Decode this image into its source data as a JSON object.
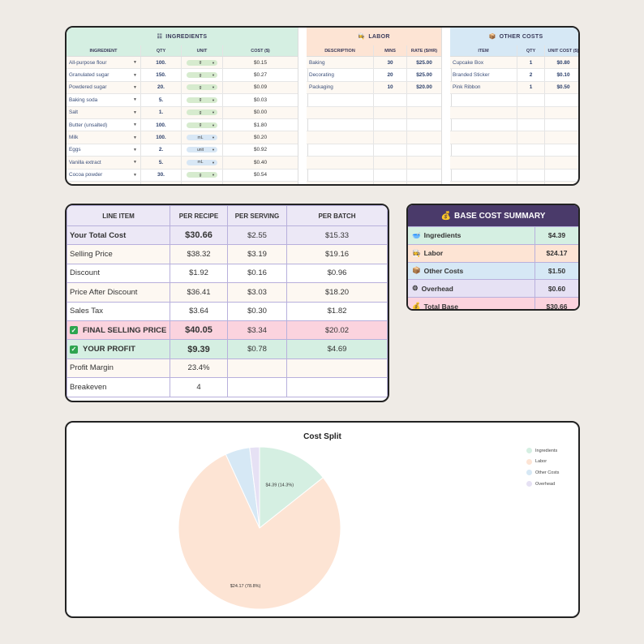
{
  "ingredients": {
    "title": "INGREDIENTS",
    "columns": [
      "INGREDIENT",
      "QTY",
      "UNIT",
      "COST ($)"
    ],
    "rows": [
      {
        "name": "All-purpose flour",
        "qty": "100.",
        "unit": "g",
        "cost": "$0.15"
      },
      {
        "name": "Granulated sugar",
        "qty": "150.",
        "unit": "g",
        "cost": "$0.27"
      },
      {
        "name": "Powdered sugar",
        "qty": "20.",
        "unit": "g",
        "cost": "$0.09"
      },
      {
        "name": "Baking soda",
        "qty": "5.",
        "unit": "g",
        "cost": "$0.03"
      },
      {
        "name": "Salt",
        "qty": "1.",
        "unit": "g",
        "cost": "$0.00"
      },
      {
        "name": "Butter (unsalted)",
        "qty": "100.",
        "unit": "g",
        "cost": "$1.80"
      },
      {
        "name": "Milk",
        "qty": "100.",
        "unit": "mL",
        "cost": "$0.20"
      },
      {
        "name": "Eggs",
        "qty": "2.",
        "unit": "unit",
        "cost": "$0.92"
      },
      {
        "name": "Vanilla extract",
        "qty": "5.",
        "unit": "mL",
        "cost": "$0.40"
      },
      {
        "name": "Cocoa powder",
        "qty": "30.",
        "unit": "g",
        "cost": "$0.54"
      },
      {
        "name": "",
        "qty": "",
        "unit": "",
        "cost": ""
      }
    ]
  },
  "labor": {
    "title": "LABOR",
    "columns": [
      "DESCRIPTION",
      "MINS",
      "RATE ($/HR)"
    ],
    "rows": [
      {
        "desc": "Baking",
        "mins": "30",
        "rate": "$25.00"
      },
      {
        "desc": "Decorating",
        "mins": "20",
        "rate": "$25.00"
      },
      {
        "desc": "Packaging",
        "mins": "10",
        "rate": "$20.00"
      }
    ]
  },
  "other": {
    "title": "OTHER COSTS",
    "columns": [
      "ITEM",
      "QTY",
      "UNIT COST ($)"
    ],
    "rows": [
      {
        "item": "Cupcake Box",
        "qty": "1",
        "cost": "$0.80"
      },
      {
        "item": "Branded Sticker",
        "qty": "2",
        "cost": "$0.10"
      },
      {
        "item": "Pink Ribbon",
        "qty": "1",
        "cost": "$0.50"
      }
    ]
  },
  "pricing": {
    "columns": [
      "LINE ITEM",
      "PER RECIPE",
      "PER SERVING",
      "PER BATCH"
    ],
    "rows": [
      {
        "label": "Your Total Cost",
        "recipe": "$30.66",
        "serving": "$2.55",
        "batch": "$15.33"
      },
      {
        "label": "Selling Price",
        "recipe": "$38.32",
        "serving": "$3.19",
        "batch": "$19.16"
      },
      {
        "label": "Discount",
        "recipe": "$1.92",
        "serving": "$0.16",
        "batch": "$0.96"
      },
      {
        "label": "Price After Discount",
        "recipe": "$36.41",
        "serving": "$3.03",
        "batch": "$18.20"
      },
      {
        "label": "Sales Tax",
        "recipe": "$3.64",
        "serving": "$0.30",
        "batch": "$1.82"
      },
      {
        "label": "FINAL SELLING PRICE",
        "recipe": "$40.05",
        "serving": "$3.34",
        "batch": "$20.02"
      },
      {
        "label": "YOUR PROFIT",
        "recipe": "$9.39",
        "serving": "$0.78",
        "batch": "$4.69"
      },
      {
        "label": "Profit Margin",
        "recipe": "23.4%",
        "serving": "",
        "batch": ""
      },
      {
        "label": "Breakeven",
        "recipe": "4",
        "serving": "",
        "batch": ""
      }
    ]
  },
  "summary": {
    "title": "BASE COST SUMMARY",
    "rows": [
      {
        "label": "Ingredients",
        "value": "$4.39",
        "icon": "bowl-icon",
        "color": "#d5efe2"
      },
      {
        "label": "Labor",
        "value": "$24.17",
        "icon": "chef-icon",
        "color": "#fde4d4"
      },
      {
        "label": "Other Costs",
        "value": "$1.50",
        "icon": "box-icon",
        "color": "#d6e8f5"
      },
      {
        "label": "Overhead",
        "value": "$0.60",
        "icon": "gear-icon",
        "color": "#e6e1f4"
      },
      {
        "label": "Total Base",
        "value": "$30.66",
        "icon": "money-bag-icon",
        "color": "#fbd3de"
      }
    ]
  },
  "chart_data": {
    "type": "pie",
    "title": "Cost Split",
    "categories": [
      "Ingredients",
      "Labor",
      "Other Costs",
      "Overhead"
    ],
    "values": [
      4.39,
      24.17,
      1.5,
      0.6
    ],
    "colors": [
      "#d5efe2",
      "#fde4d4",
      "#d6e8f5",
      "#e6e1f4"
    ],
    "data_labels": [
      "$4.39 (14.3%)",
      "$24.17 (78.8%)",
      "",
      ""
    ],
    "legend_position": "right"
  }
}
